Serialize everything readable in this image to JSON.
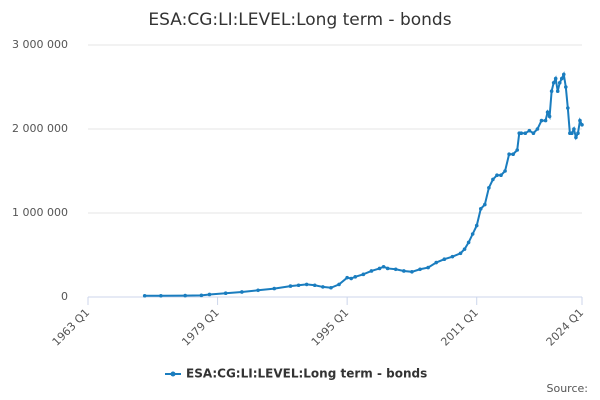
{
  "chart_data": {
    "type": "line",
    "title": "ESA:CG:LI:LEVEL:Long term - bonds",
    "source_label": "Source:",
    "x": [
      1970,
      1972,
      1975,
      1977,
      1978,
      1980,
      1982,
      1984,
      1986,
      1988,
      1989,
      1990,
      1991,
      1992,
      1993,
      1994,
      1995,
      1995.5,
      1996,
      1997,
      1998,
      1999,
      1999.5,
      2000,
      2001,
      2002,
      2003,
      2004,
      2005,
      2006,
      2007,
      2008,
      2009,
      2009.5,
      2010,
      2010.5,
      2011,
      2011.5,
      2012,
      2012.5,
      2013,
      2013.5,
      2014,
      2014.5,
      2015,
      2015.5,
      2016,
      2016.25,
      2016.5,
      2017,
      2017.5,
      2018,
      2018.5,
      2019,
      2019.5,
      2019.75,
      2020,
      2020.25,
      2020.5,
      2020.75,
      2021,
      2021.25,
      2021.5,
      2021.75,
      2022,
      2022.25,
      2022.5,
      2022.75,
      2023,
      2023.25,
      2023.5,
      2023.75,
      2024
    ],
    "series": [
      {
        "name": "ESA:CG:LI:LEVEL:Long term - bonds",
        "color": "#1a7dbf",
        "values": [
          15000,
          15000,
          17000,
          20000,
          30000,
          45000,
          60000,
          80000,
          100000,
          130000,
          140000,
          150000,
          140000,
          120000,
          110000,
          150000,
          230000,
          220000,
          240000,
          270000,
          310000,
          340000,
          360000,
          340000,
          330000,
          310000,
          300000,
          330000,
          350000,
          410000,
          450000,
          480000,
          520000,
          570000,
          650000,
          750000,
          850000,
          1050000,
          1100000,
          1300000,
          1400000,
          1450000,
          1450000,
          1500000,
          1700000,
          1700000,
          1750000,
          1950000,
          1950000,
          1950000,
          1980000,
          1950000,
          2000000,
          2100000,
          2100000,
          2200000,
          2150000,
          2450000,
          2550000,
          2600000,
          2450000,
          2550000,
          2600000,
          2650000,
          2500000,
          2250000,
          1950000,
          1950000,
          2000000,
          1900000,
          1950000,
          2100000,
          2050000
        ]
      }
    ],
    "xlim": [
      1963,
      2024
    ],
    "xticks": [
      {
        "value": 1963,
        "label": "1963 Q1"
      },
      {
        "value": 1979,
        "label": "1979 Q1"
      },
      {
        "value": 1995,
        "label": "1995 Q1"
      },
      {
        "value": 2011,
        "label": "2011 Q1"
      },
      {
        "value": 2024,
        "label": "2024 Q1"
      }
    ],
    "ylim": [
      0,
      3000000
    ],
    "yticks": [
      0,
      {
        "value": 1000000,
        "label": "1 000 000"
      },
      {
        "value": 2000000,
        "label": "2 000 000"
      },
      {
        "value": 3000000,
        "label": "3 000 000"
      }
    ],
    "grid": true
  }
}
